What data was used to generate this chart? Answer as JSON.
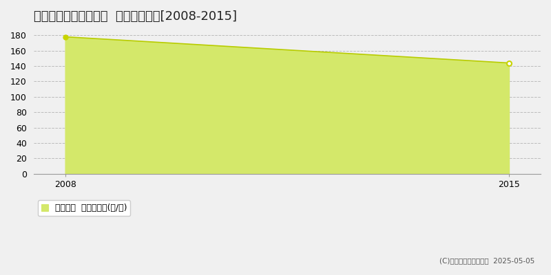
{
  "title": "甘楽郡下仁田町東野牧  林地価格推移[2008-2015]",
  "x": [
    2008,
    2015
  ],
  "y": [
    178,
    144
  ],
  "xlim": [
    2007.5,
    2015.5
  ],
  "ylim": [
    0,
    190
  ],
  "yticks": [
    0,
    20,
    40,
    60,
    80,
    100,
    120,
    140,
    160,
    180
  ],
  "xticks": [
    2008,
    2015
  ],
  "line_color": "#b8cc00",
  "fill_color": "#d4e86a",
  "fill_alpha": 1.0,
  "marker_color_fill": "#c8d400",
  "marker_color_open": "#c8d400",
  "grid_color": "#bbbbbb",
  "background_color": "#f0f0f0",
  "plot_bg_color": "#f0f0f0",
  "legend_label": "林地価格  平均坪単価(円/坪)",
  "copyright_text": "(C)土地価格ドットコム  2025-05-05",
  "title_fontsize": 13,
  "axis_fontsize": 9,
  "legend_fontsize": 9
}
